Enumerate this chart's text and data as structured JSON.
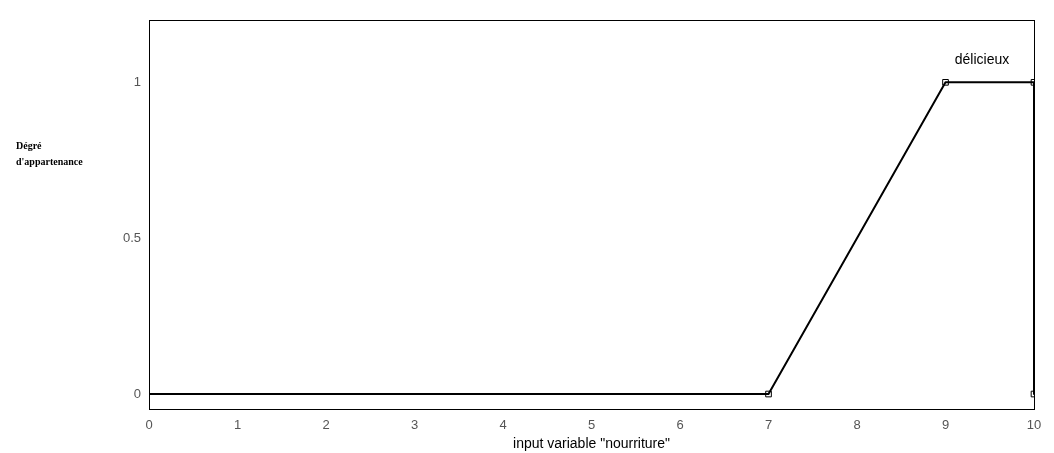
{
  "chart_data": {
    "type": "line",
    "xlabel": "input variable \"nourriture\"",
    "ylabel": "Dégré d'appartenance",
    "series": [
      {
        "type": "line",
        "color": "#000000",
        "x": [
          0,
          7,
          9,
          10,
          10
        ],
        "values": [
          0,
          0,
          1,
          1,
          0
        ],
        "marker": "none"
      },
      {
        "type": "scatter",
        "color": "#000000",
        "x": [
          7,
          9,
          10,
          10
        ],
        "values": [
          0,
          1,
          1,
          0
        ],
        "marker": "square"
      }
    ],
    "annotations": [
      "délicieux"
    ],
    "xlim": [
      0,
      10
    ],
    "xticks": [
      0,
      1,
      2,
      3,
      4,
      5,
      6,
      7,
      8,
      9,
      10
    ],
    "ylim": [
      -0.05,
      1.2
    ],
    "yticks": [
      0,
      0.5,
      1
    ],
    "grid": false,
    "legend": false
  }
}
